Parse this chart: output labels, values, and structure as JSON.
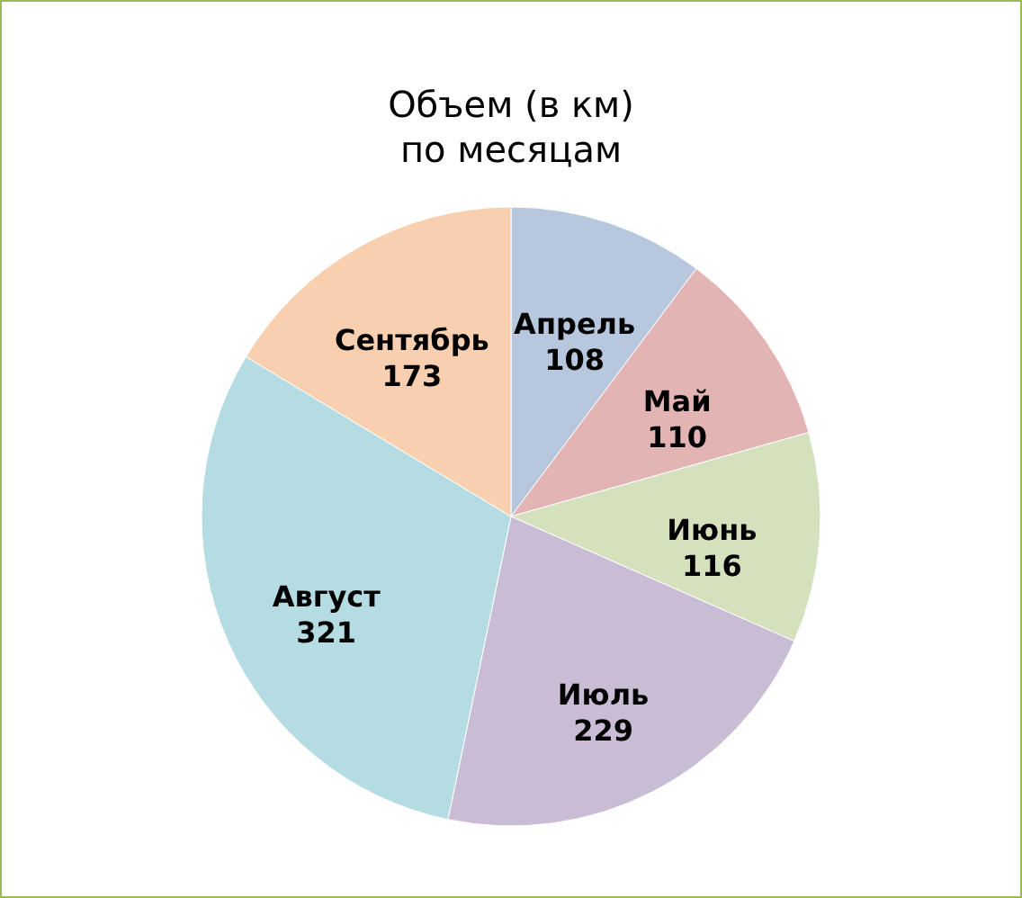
{
  "chart_data": {
    "type": "pie",
    "title": "Объем (в км)\nпо месяцам",
    "categories": [
      "Апрель",
      "Май",
      "Июнь",
      "Июль",
      "Август",
      "Сентябрь"
    ],
    "values": [
      108,
      110,
      116,
      229,
      321,
      173
    ],
    "colors": [
      "#b7c7de",
      "#e2b4b3",
      "#d5e0bd",
      "#c9bdd6",
      "#b5dbe3",
      "#f8d0b0"
    ],
    "data_labels": true,
    "legend": false
  }
}
